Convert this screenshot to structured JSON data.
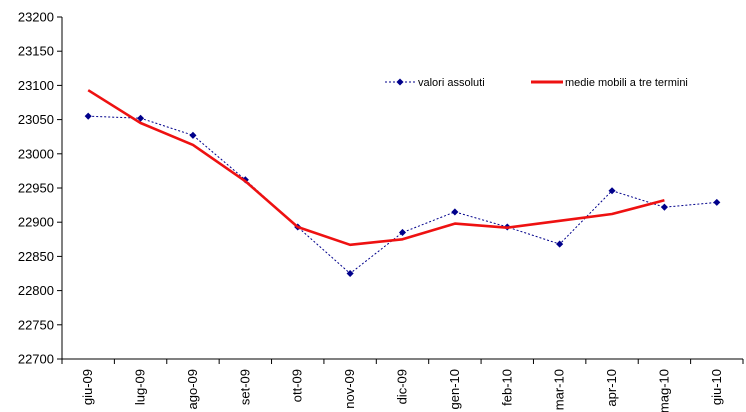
{
  "chart_data": {
    "type": "line",
    "title": "",
    "xlabel": "",
    "ylabel": "",
    "categories": [
      "giu-09",
      "lug-09",
      "ago-09",
      "set-09",
      "ott-09",
      "nov-09",
      "dic-09",
      "gen-10",
      "feb-10",
      "mar-10",
      "apr-10",
      "mag-10",
      "giu-10"
    ],
    "ylim": [
      22700,
      23200
    ],
    "yticks": [
      22700,
      22750,
      22800,
      22850,
      22900,
      22950,
      23000,
      23050,
      23100,
      23150,
      23200
    ],
    "grid": false,
    "legend_position": "top-right",
    "series": [
      {
        "name": "valori assoluti",
        "style": "dotted-with-diamond-markers",
        "color": "#00008b",
        "values": [
          23055,
          23052,
          23027,
          22962,
          22893,
          22825,
          22885,
          22915,
          22893,
          22868,
          22946,
          22922,
          22929
        ]
      },
      {
        "name": "medie mobili a tre termini",
        "style": "solid",
        "color": "#ee1111",
        "values": [
          23093,
          23045,
          23013,
          22960,
          22893,
          22867,
          22875,
          22898,
          22892,
          22902,
          22912,
          22932,
          null
        ]
      }
    ]
  }
}
